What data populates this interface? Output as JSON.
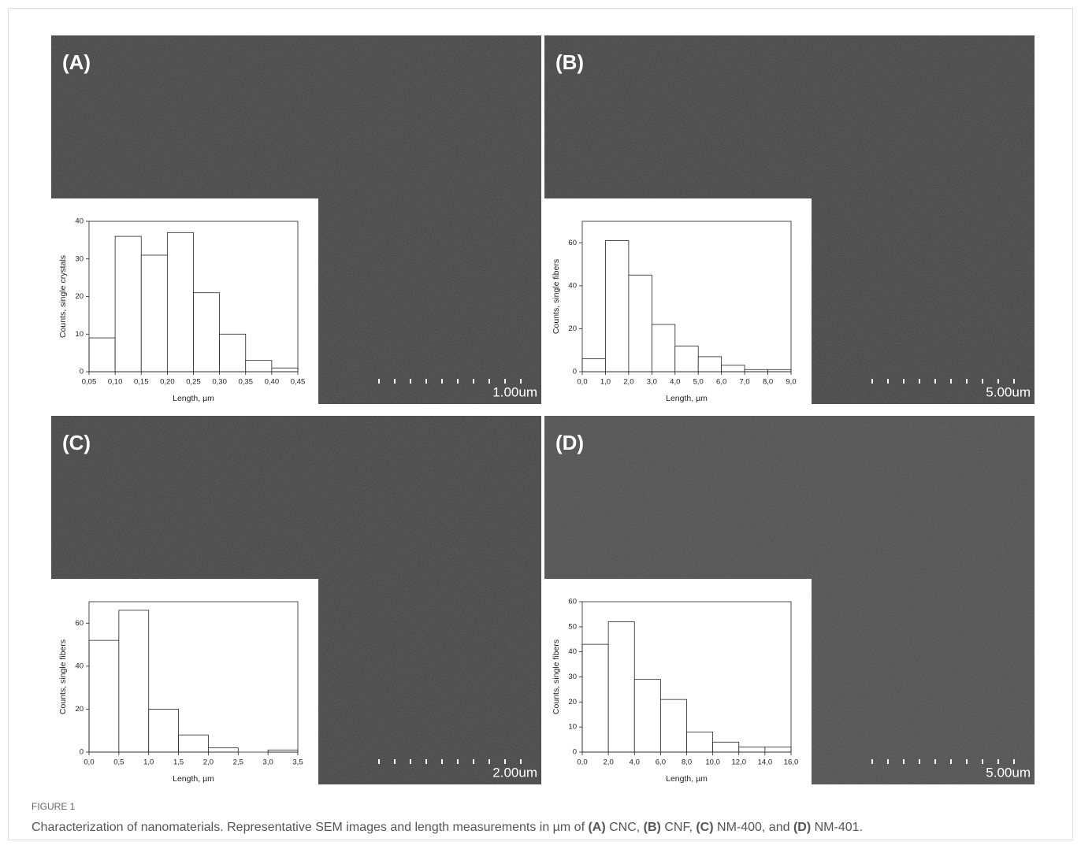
{
  "chart_data": [
    {
      "type": "histogram",
      "panel": "(A)",
      "scale_bar": "1.00um",
      "x_label": "Length, µm",
      "y_label": "Counts, single crystals",
      "bins": [
        0.05,
        0.1,
        0.15,
        0.2,
        0.25,
        0.3,
        0.35,
        0.4,
        0.45
      ],
      "values": [
        9,
        36,
        31,
        37,
        21,
        10,
        3,
        1
      ],
      "xlim": [
        0.05,
        0.45
      ],
      "ylim": [
        0,
        40
      ],
      "xticks": [
        {
          "value": 0.05,
          "label": "0,05"
        },
        {
          "value": 0.1,
          "label": "0,10"
        },
        {
          "value": 0.15,
          "label": "0,15"
        },
        {
          "value": 0.2,
          "label": "0,20"
        },
        {
          "value": 0.25,
          "label": "0,25"
        },
        {
          "value": 0.3,
          "label": "0,30"
        },
        {
          "value": 0.35,
          "label": "0,35"
        },
        {
          "value": 0.4,
          "label": "0,40"
        },
        {
          "value": 0.45,
          "label": "0,45"
        }
      ],
      "yticks": [
        0,
        10,
        20,
        30,
        40
      ],
      "color": "#ffffff"
    },
    {
      "type": "histogram",
      "panel": "(B)",
      "scale_bar": "5.00um",
      "x_label": "Length, µm",
      "y_label": "Counts, single fibers",
      "bins": [
        0,
        1,
        2,
        3,
        4,
        5,
        6,
        7,
        8,
        9
      ],
      "values": [
        6,
        61,
        45,
        22,
        12,
        7,
        3,
        1,
        1
      ],
      "xlim": [
        0,
        9
      ],
      "ylim": [
        0,
        70
      ],
      "xticks": [
        {
          "value": 0,
          "label": "0,0"
        },
        {
          "value": 1,
          "label": "1,0"
        },
        {
          "value": 2,
          "label": "2,0"
        },
        {
          "value": 3,
          "label": "3,0"
        },
        {
          "value": 4,
          "label": "4,0"
        },
        {
          "value": 5,
          "label": "5,0"
        },
        {
          "value": 6,
          "label": "6,0"
        },
        {
          "value": 7,
          "label": "7,0"
        },
        {
          "value": 8,
          "label": "8,0"
        },
        {
          "value": 9,
          "label": "9,0"
        }
      ],
      "yticks": [
        0,
        20,
        40,
        60
      ],
      "color": "#ffffff"
    },
    {
      "type": "histogram",
      "panel": "(C)",
      "scale_bar": "2.00um",
      "x_label": "Length, µm",
      "y_label": "Counts, single fibers",
      "bins": [
        0,
        0.5,
        1,
        1.5,
        2,
        2.5,
        3,
        3.5
      ],
      "values": [
        52,
        66,
        20,
        8,
        2,
        0,
        1
      ],
      "xlim": [
        0,
        3.5
      ],
      "ylim": [
        0,
        70
      ],
      "xticks": [
        {
          "value": 0,
          "label": "0,0"
        },
        {
          "value": 0.5,
          "label": "0,5"
        },
        {
          "value": 1,
          "label": "1,0"
        },
        {
          "value": 1.5,
          "label": "1,5"
        },
        {
          "value": 2,
          "label": "2,0"
        },
        {
          "value": 2.5,
          "label": "2,5"
        },
        {
          "value": 3,
          "label": "3,0"
        },
        {
          "value": 3.5,
          "label": "3,5"
        }
      ],
      "yticks": [
        0,
        20,
        40,
        60
      ],
      "color": "#ffffff"
    },
    {
      "type": "histogram",
      "panel": "(D)",
      "scale_bar": "5.00um",
      "x_label": "Length, µm",
      "y_label": "Counts, single fibers",
      "bins": [
        0,
        2,
        4,
        6,
        8,
        10,
        12,
        14,
        16
      ],
      "values": [
        43,
        52,
        29,
        21,
        8,
        4,
        2,
        2
      ],
      "xlim": [
        0,
        16
      ],
      "ylim": [
        0,
        60
      ],
      "xticks": [
        {
          "value": 0,
          "label": "0,0"
        },
        {
          "value": 2,
          "label": "2,0"
        },
        {
          "value": 4,
          "label": "4,0"
        },
        {
          "value": 6,
          "label": "6,0"
        },
        {
          "value": 8,
          "label": "8,0"
        },
        {
          "value": 10,
          "label": "10,0"
        },
        {
          "value": 12,
          "label": "12,0"
        },
        {
          "value": 14,
          "label": "14,0"
        },
        {
          "value": 16,
          "label": "16,0"
        }
      ],
      "yticks": [
        0,
        10,
        20,
        30,
        40,
        50,
        60
      ],
      "color": "#ffffff"
    }
  ],
  "figure": {
    "label": "FIGURE 1",
    "caption": [
      "Characterization of nanomaterials. Representative SEM images and length measurements in µm of ",
      "(A)",
      " CNC, ",
      "(B)",
      " CNF, ",
      "(C)",
      " NM-400, and ",
      "(D)",
      " NM-401."
    ]
  }
}
